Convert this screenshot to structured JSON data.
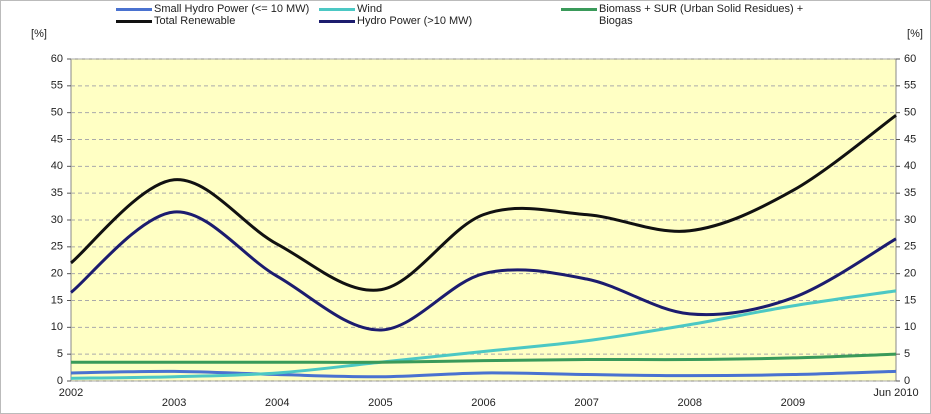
{
  "chart_data": {
    "type": "line",
    "y_label": "[%]",
    "y2_label": "[%]",
    "categories": [
      "2002",
      "2003",
      "2004",
      "2005",
      "2006",
      "2007",
      "2008",
      "2009",
      "Jun 2010"
    ],
    "series": [
      {
        "name": "Small Hydro Power  (<= 10 MW)",
        "color": "#4a72d0",
        "values": [
          1.5,
          1.8,
          1.2,
          0.8,
          1.5,
          1.2,
          1.0,
          1.2,
          1.8
        ]
      },
      {
        "name": "Wind",
        "color": "#4cc8c4",
        "values": [
          0.5,
          0.8,
          1.5,
          3.5,
          5.5,
          7.5,
          10.5,
          14,
          16.8
        ]
      },
      {
        "name": "Biomass + SUR (Urban Solid Residues) + Biogas",
        "color": "#3a9a5a",
        "values": [
          3.5,
          3.5,
          3.5,
          3.5,
          3.8,
          4,
          4,
          4.3,
          5
        ]
      },
      {
        "name": "Total Renewable",
        "color": "#111111",
        "values": [
          22,
          37.5,
          25.5,
          17,
          31,
          31,
          28,
          35.5,
          49.5
        ]
      },
      {
        "name": "Hydro Power (>10 MW)",
        "color": "#1c1c6e",
        "values": [
          16.5,
          31.5,
          19.5,
          9.5,
          20,
          19,
          12.5,
          15.5,
          26.5
        ]
      }
    ],
    "ylim": [
      0,
      60
    ],
    "yticks": [
      0,
      5,
      10,
      15,
      20,
      25,
      30,
      35,
      40,
      45,
      50,
      55,
      60
    ],
    "y2lim": [
      0,
      60
    ],
    "y2ticks": [
      0,
      5,
      10,
      15,
      20,
      25,
      30,
      35,
      40,
      45,
      50,
      55,
      60
    ],
    "grid": true
  }
}
